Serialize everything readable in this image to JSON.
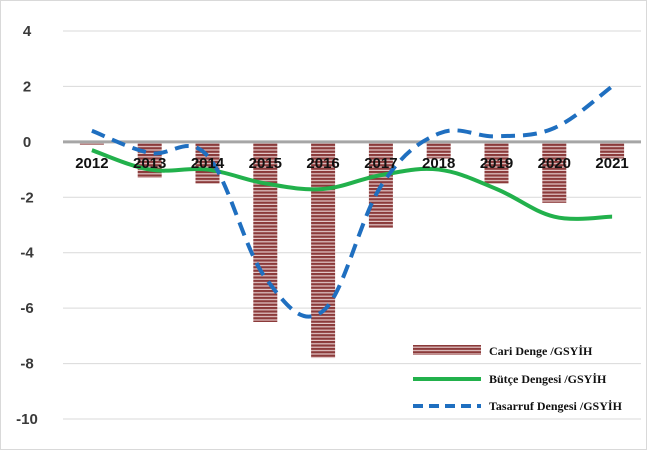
{
  "chart_data": {
    "type": "bar",
    "categories": [
      "2012",
      "2013",
      "2014",
      "2015",
      "2016",
      "2017",
      "2018",
      "2019",
      "2020",
      "2021"
    ],
    "ylim": [
      -10,
      4
    ],
    "yticks": [
      4,
      2,
      0,
      -2,
      -4,
      -6,
      -8,
      -10
    ],
    "grid": true,
    "legend_position": "bottom-right",
    "series": [
      {
        "name": "Cari Denge /GSYİH",
        "type": "bar",
        "color": "#8b3a3a",
        "values": [
          -0.1,
          -1.3,
          -1.5,
          -6.5,
          -7.8,
          -3.1,
          -0.6,
          -1.5,
          -2.2,
          -0.6
        ]
      },
      {
        "name": "Bütçe Dengesi /GSYİH",
        "type": "line",
        "style": "solid",
        "color": "#22b14c",
        "values": [
          -0.3,
          -1.0,
          -1.0,
          -1.5,
          -1.7,
          -1.2,
          -1.0,
          -1.7,
          -2.7,
          -2.7
        ]
      },
      {
        "name": "Tasarruf Dengesi /GSYİH",
        "type": "line",
        "style": "dashed",
        "color": "#1f6fc0",
        "values": [
          0.4,
          -0.4,
          -0.5,
          -4.9,
          -6.1,
          -1.6,
          0.3,
          0.2,
          0.5,
          2.0
        ]
      }
    ]
  }
}
